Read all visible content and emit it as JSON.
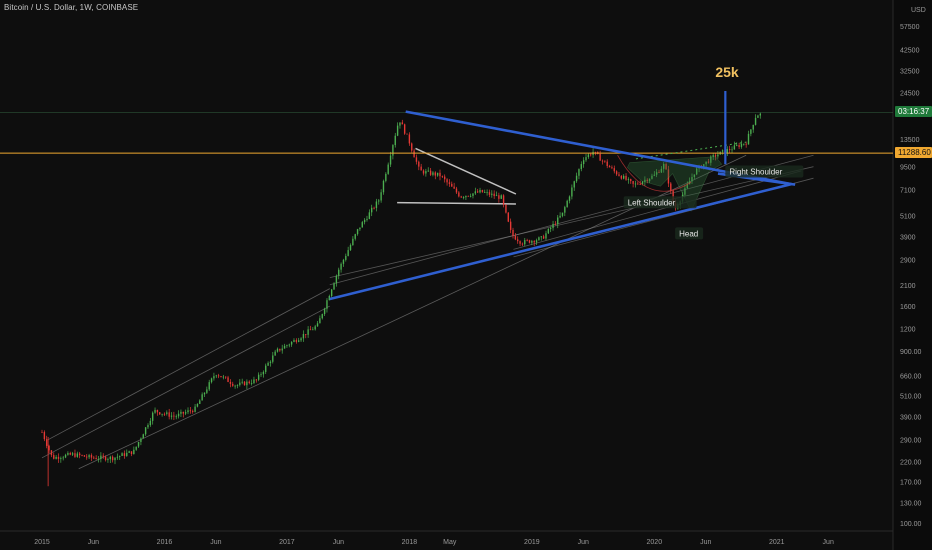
{
  "header": {
    "symbol_title": "Bitcoin / U.S. Dollar, 1W, COINBASE"
  },
  "axis": {
    "currency": "USD"
  },
  "price_tags": {
    "countdown": "03:16:37",
    "horizontal_level": "11288.60"
  },
  "annotations": {
    "target": "25k",
    "right_shoulder": "Right Shoulder",
    "left_shoulder": "Left Shoulder",
    "head": "Head"
  },
  "colors": {
    "background": "#0e0e0e",
    "up_candle": "#4caf50",
    "down_candle": "#e53935",
    "triangle_lines": "#2f5fd0",
    "horizontal_level": "#f0a830",
    "target_text": "#f0c060",
    "grey_lines": "#9a9a9a",
    "countdown_tag": "#1f7a3a"
  },
  "chart_data": {
    "type": "candlestick",
    "scale": "log",
    "ylim": [
      100,
      75000
    ],
    "y_ticks": [
      100,
      130,
      170,
      220,
      290,
      390,
      510,
      660,
      900,
      1200,
      1600,
      2100,
      2900,
      3900,
      5100,
      7100,
      9500,
      13500,
      24500,
      32500,
      42500,
      57500
    ],
    "x_ticks": [
      "2015",
      "Jun",
      "2016",
      "Jun",
      "2017",
      "Jun",
      "2018",
      "May",
      "2019",
      "Jun",
      "2020",
      "Jun",
      "2021",
      "Jun"
    ],
    "horizontal_level": 11288.6,
    "target_level": 25000,
    "price_path": [
      [
        "2015-01",
        320
      ],
      [
        "2015-02",
        230
      ],
      [
        "2015-04",
        240
      ],
      [
        "2015-06",
        230
      ],
      [
        "2015-08",
        230
      ],
      [
        "2015-10",
        250
      ],
      [
        "2015-12",
        420
      ],
      [
        "2016-02",
        390
      ],
      [
        "2016-04",
        430
      ],
      [
        "2016-06",
        680
      ],
      [
        "2016-08",
        580
      ],
      [
        "2016-10",
        620
      ],
      [
        "2016-12",
        900
      ],
      [
        "2017-02",
        1050
      ],
      [
        "2017-04",
        1250
      ],
      [
        "2017-06",
        2500
      ],
      [
        "2017-08",
        4300
      ],
      [
        "2017-10",
        6200
      ],
      [
        "2017-12",
        17500
      ],
      [
        "2018-01",
        13000
      ],
      [
        "2018-02",
        9000
      ],
      [
        "2018-04",
        8500
      ],
      [
        "2018-06",
        6500
      ],
      [
        "2018-08",
        6900
      ],
      [
        "2018-10",
        6400
      ],
      [
        "2018-11",
        4000
      ],
      [
        "2018-12",
        3600
      ],
      [
        "2019-02",
        3800
      ],
      [
        "2019-04",
        5200
      ],
      [
        "2019-06",
        10500
      ],
      [
        "2019-07",
        11500
      ],
      [
        "2019-09",
        9000
      ],
      [
        "2019-11",
        7500
      ],
      [
        "2020-01",
        8500
      ],
      [
        "2020-02",
        9800
      ],
      [
        "2020-03",
        5500
      ],
      [
        "2020-05",
        9000
      ],
      [
        "2020-07",
        11000
      ],
      [
        "2020-08",
        11600
      ],
      [
        "2020-10",
        13000
      ],
      [
        "2020-11",
        18500
      ]
    ]
  }
}
